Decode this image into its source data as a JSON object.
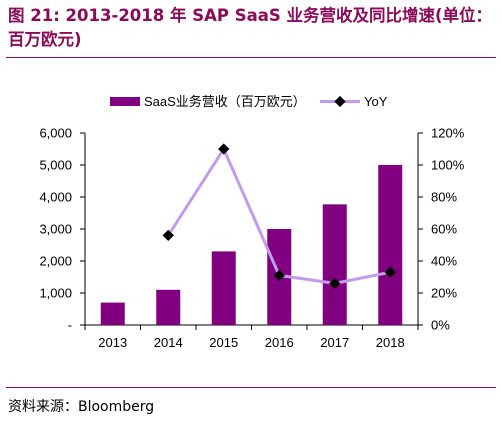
{
  "figure": {
    "title": "图 21: 2013-2018 年 SAP SaaS 业务营收及同比增速(单位：百万欧元)",
    "source": "资料来源：Bloomberg"
  },
  "chart_data": {
    "type": "bar",
    "categories": [
      "2013",
      "2014",
      "2015",
      "2016",
      "2017",
      "2018"
    ],
    "series": [
      {
        "name": "SaaS业务营收（百万欧元）",
        "type": "bar",
        "axis": "left",
        "values": [
          700,
          1100,
          2300,
          3000,
          3770,
          5000
        ]
      },
      {
        "name": "YoY",
        "type": "line",
        "axis": "right",
        "values": [
          null,
          56,
          110,
          31,
          26,
          33
        ]
      }
    ],
    "left_axis": {
      "ylim": [
        0,
        6000
      ],
      "ticks": [
        "-",
        "1,000",
        "2,000",
        "3,000",
        "4,000",
        "5,000",
        "6,000"
      ]
    },
    "right_axis": {
      "ylim": [
        0,
        120
      ],
      "ticks": [
        "0%",
        "20%",
        "40%",
        "60%",
        "80%",
        "100%",
        "120%"
      ]
    },
    "legend_position": "top",
    "colors": {
      "bar": "#800080",
      "line": "#c49af0",
      "marker": "#000000",
      "accent": "#8b0a5a"
    }
  }
}
